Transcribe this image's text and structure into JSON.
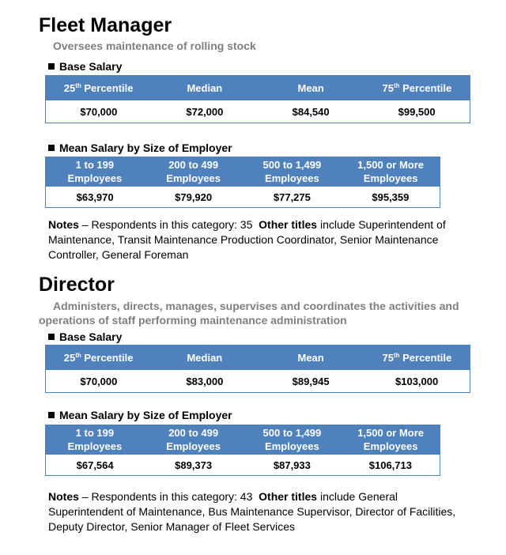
{
  "sections": [
    {
      "title": "Fleet Manager",
      "description": "Oversees maintenance of rolling stock",
      "base_salary": {
        "heading": "Base Salary",
        "columns": [
          {
            "label": "25",
            "sup": "th",
            "rest": " Percentile"
          },
          {
            "label": "Median",
            "sup": "",
            "rest": ""
          },
          {
            "label": "Mean",
            "sup": "",
            "rest": ""
          },
          {
            "label": "75",
            "sup": "th",
            "rest": " Percentile"
          }
        ],
        "values": [
          "$70,000",
          "$72,000",
          "$84,540",
          "$99,500"
        ]
      },
      "employer_size": {
        "heading": "Mean Salary by Size of Employer",
        "columns": [
          {
            "line1": "1 to 199",
            "line2": "Employees"
          },
          {
            "line1": "200 to 499",
            "line2": "Employees"
          },
          {
            "line1": "500 to 1,499",
            "line2": "Employees"
          },
          {
            "line1": "1,500 or More",
            "line2": "Employees"
          }
        ],
        "values": [
          "$63,970",
          "$79,920",
          "$77,275",
          "$95,359"
        ]
      },
      "notes": {
        "label": "Notes",
        "respondents": " – Respondents in this category: 35",
        "other_label": "Other titles",
        "other_text": " include Superintendent of Maintenance, Transit Maintenance Production Coordinator, Senior Maintenance Controller, General Foreman"
      }
    },
    {
      "title": "Director",
      "description": "Administers, directs, manages, supervises and coordinates the activities and operations of staff performing maintenance administration",
      "base_salary": {
        "heading": "Base Salary",
        "columns": [
          {
            "label": "25",
            "sup": "th",
            "rest": " Percentile"
          },
          {
            "label": "Median",
            "sup": "",
            "rest": ""
          },
          {
            "label": "Mean",
            "sup": "",
            "rest": ""
          },
          {
            "label": "75",
            "sup": "th",
            "rest": " Percentile"
          }
        ],
        "values": [
          "$70,000",
          "$83,000",
          "$89,945",
          "$103,000"
        ]
      },
      "employer_size": {
        "heading": "Mean Salary by Size of Employer",
        "columns": [
          {
            "line1": "1 to 199",
            "line2": "Employees"
          },
          {
            "line1": "200 to 499",
            "line2": "Employees"
          },
          {
            "line1": "500 to 1,499",
            "line2": "Employees"
          },
          {
            "line1": "1,500 or More",
            "line2": "Employees"
          }
        ],
        "values": [
          "$67,564",
          "$89,373",
          "$87,933",
          "$106,713"
        ]
      },
      "notes": {
        "label": "Notes",
        "respondents": " – Respondents in this category: 43",
        "other_label": "Other titles",
        "other_text": " include General Superintendent of Maintenance, Bus Maintenance Supervisor, Director of Facilities, Deputy Director, Senior Manager of Fleet Services"
      }
    }
  ],
  "colors": {
    "header_bg": "#4f81bd",
    "description_text": "#7f7f7f"
  }
}
